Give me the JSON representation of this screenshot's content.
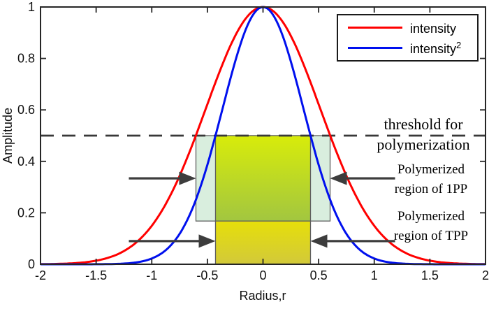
{
  "axes": {
    "x_label": "Radius,r",
    "y_label": "Amplitude"
  },
  "legend": {
    "items": [
      {
        "label": "intensity",
        "sup": "",
        "color": "#ff0000"
      },
      {
        "label": "intensity",
        "sup": "2",
        "color": "#0010ee"
      }
    ]
  },
  "annotations": {
    "threshold": {
      "line1": "threshold for",
      "line2": "polymerization"
    },
    "region_1pp": {
      "line1": "Polymerized",
      "line2": "region of 1PP"
    },
    "region_tpp": {
      "line1": "Polymerized",
      "line2": "region of TPP"
    }
  },
  "chart_data": {
    "type": "line",
    "title": "",
    "xlabel": "Radius,r",
    "ylabel": "Amplitude",
    "xlim": [
      -2,
      2
    ],
    "ylim": [
      0,
      1
    ],
    "grid": false,
    "legend_position": "top-right",
    "x_tick_labels": [
      "-2",
      "-1.5",
      "-1",
      "-0.5",
      "0",
      "0.5",
      "1",
      "1.5",
      "2"
    ],
    "y_tick_labels": [
      "0",
      "0.2",
      "0.4",
      "0.6",
      "0.8",
      "1"
    ],
    "series": [
      {
        "name": "intensity",
        "color": "#ff0000",
        "formula": "exp(-1.9*r^2)",
        "gauss_k": 1.9,
        "x": [
          -2,
          -1.75,
          -1.5,
          -1.25,
          -1,
          -0.75,
          -0.5,
          -0.25,
          0,
          0.25,
          0.5,
          0.75,
          1,
          1.25,
          1.5,
          1.75,
          2
        ],
        "y": [
          0.0005,
          0.003,
          0.0139,
          0.0514,
          0.1496,
          0.3434,
          0.6219,
          0.888,
          1.0,
          0.888,
          0.6219,
          0.3434,
          0.1496,
          0.0514,
          0.0139,
          0.003,
          0.0005
        ]
      },
      {
        "name": "intensity^2",
        "color": "#0010ee",
        "formula": "exp(-3.8*r^2)",
        "gauss_k": 3.8,
        "x": [
          -2,
          -1.75,
          -1.5,
          -1.25,
          -1,
          -0.75,
          -0.5,
          -0.25,
          0,
          0.25,
          0.5,
          0.75,
          1,
          1.25,
          1.5,
          1.75,
          2
        ],
        "y": [
          0.0,
          0.0,
          0.0002,
          0.0026,
          0.0224,
          0.1179,
          0.3868,
          0.7885,
          1.0,
          0.7885,
          0.3868,
          0.1179,
          0.0224,
          0.0026,
          0.0002,
          0.0,
          0.0
        ]
      }
    ],
    "threshold_line": {
      "value": 0.5,
      "style": "dashed",
      "color": "#383838"
    },
    "regions": [
      {
        "name": "polymerized-region-1pp",
        "x_range": [
          -0.603,
          0.603
        ],
        "y_range": [
          0.168,
          0.5
        ],
        "fill_top": "#d9eede",
        "fill_bottom": "#d9eede"
      },
      {
        "name": "polymerized-overlap",
        "x_range": [
          -0.427,
          0.427
        ],
        "y_range": [
          0.168,
          0.5
        ],
        "fill_top": "#d8ec0a",
        "fill_bottom": "#a2c640"
      },
      {
        "name": "polymerized-region-tpp",
        "x_range": [
          -0.427,
          0.427
        ],
        "y_range": [
          0.0,
          0.168
        ],
        "fill_top": "#e6df0a",
        "fill_bottom": "#d2c93a"
      }
    ],
    "arrows": [
      {
        "name": "arrow-left-1pp",
        "x_tail": -1.206,
        "x_tip": -0.603,
        "y": 0.334
      },
      {
        "name": "arrow-left-tpp",
        "x_tail": -1.206,
        "x_tip": -0.427,
        "y": 0.09
      },
      {
        "name": "arrow-right-1pp",
        "x_tail": 1.187,
        "x_tip": 0.603,
        "y": 0.334
      },
      {
        "name": "arrow-right-tpp",
        "x_tail": 1.187,
        "x_tip": 0.427,
        "y": 0.09
      }
    ],
    "arrow_color": "#3d3d3d",
    "axis_color": "#262626"
  }
}
